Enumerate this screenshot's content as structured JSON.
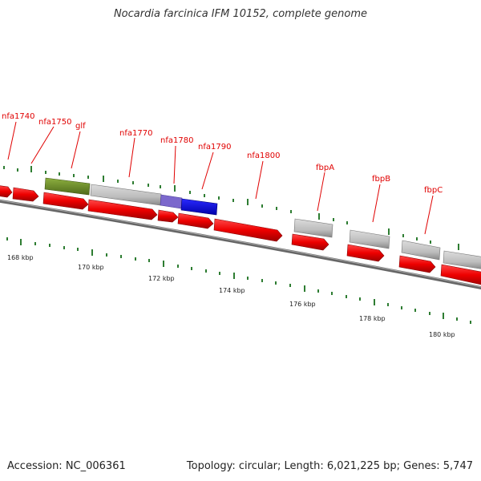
{
  "header": {
    "title": "Nocardia farcinica IFM 10152, complete genome"
  },
  "footer": {
    "accession": "Accession: NC_006361",
    "summary": "Topology: circular; Length: 6,021,225 bp; Genes: 5,747"
  },
  "map": {
    "kbp_labels": [
      "168 kbp",
      "170 kbp",
      "172 kbp",
      "174 kbp",
      "176 kbp",
      "178 kbp",
      "180 kbp"
    ],
    "gene_labels": [
      "nfa1740",
      "nfa1750",
      "glf",
      "nfa1770",
      "nfa1780",
      "nfa1790",
      "nfa1800",
      "fbpA",
      "fbpB",
      "fbpC"
    ],
    "colors": {
      "forward_gene": "#ee0000",
      "label": "#e00000",
      "backbone": "#777777",
      "gray_feature": "#c0c0c0",
      "olive_feature": "#6b8e23",
      "blue_feature": "#0000ee",
      "purple_feature": "#7b68cc",
      "tick": "#2e7d32"
    }
  }
}
